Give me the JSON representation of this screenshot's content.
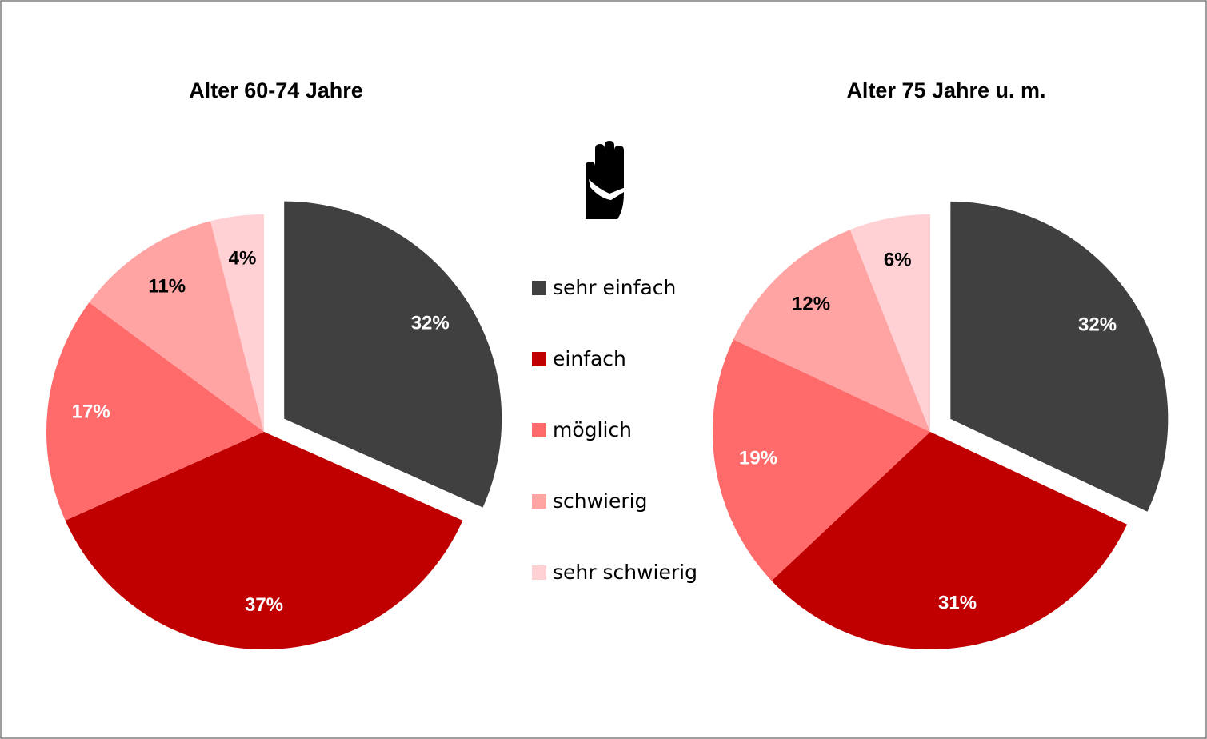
{
  "chart_data": [
    {
      "type": "pie",
      "title": "Alter 60-74 Jahre",
      "categories": [
        "sehr einfach",
        "einfach",
        "möglich",
        "schwierig",
        "sehr schwierig"
      ],
      "colors": [
        "#404040",
        "#c00000",
        "#ff6b6b",
        "#ffa3a3",
        "#ffd1d4"
      ],
      "values": [
        32,
        37,
        17,
        11,
        4
      ],
      "value_labels": [
        "32%",
        "37%",
        "17%",
        "11%",
        "4%"
      ]
    },
    {
      "type": "pie",
      "title": "Alter 75 Jahre u. m.",
      "categories": [
        "sehr einfach",
        "einfach",
        "möglich",
        "schwierig",
        "sehr schwierig"
      ],
      "colors": [
        "#404040",
        "#c00000",
        "#ff6b6b",
        "#ffa3a3",
        "#ffd1d4"
      ],
      "values": [
        32,
        31,
        19,
        12,
        6
      ],
      "value_labels": [
        "32%",
        "31%",
        "19%",
        "12%",
        "6%"
      ]
    }
  ]
}
